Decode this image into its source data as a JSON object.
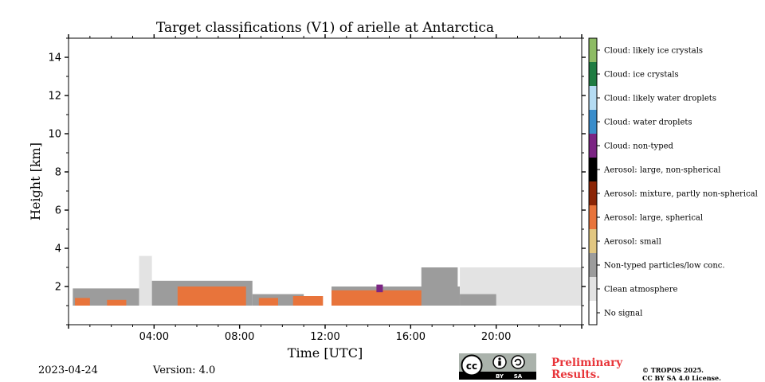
{
  "chart_data": {
    "type": "heatmap",
    "title": "Target classifications (V1) of arielle at Antarctica",
    "xlabel": "Time [UTC]",
    "ylabel": "Height [km]",
    "xlim_hours": [
      0,
      24
    ],
    "ylim_km": [
      0,
      15
    ],
    "x_ticks": [
      {
        "value": 4,
        "label": "04:00"
      },
      {
        "value": 8,
        "label": "08:00"
      },
      {
        "value": 12,
        "label": "12:00"
      },
      {
        "value": 16,
        "label": "16:00"
      },
      {
        "value": 20,
        "label": "20:00"
      }
    ],
    "y_ticks": [
      {
        "value": 2,
        "label": "2"
      },
      {
        "value": 4,
        "label": "4"
      },
      {
        "value": 6,
        "label": "6"
      },
      {
        "value": 8,
        "label": "8"
      },
      {
        "value": 10,
        "label": "10"
      },
      {
        "value": 12,
        "label": "12"
      },
      {
        "value": 14,
        "label": "14"
      }
    ],
    "classes": [
      {
        "label": "No signal",
        "color": "#ffffff"
      },
      {
        "label": "Clean atmosphere",
        "color": "#e3e3e3"
      },
      {
        "label": "Non-typed particles/low conc.",
        "color": "#9c9c9c"
      },
      {
        "label": "Aerosol: small",
        "color": "#e2c781"
      },
      {
        "label": "Aerosol: large, spherical",
        "color": "#e8743b"
      },
      {
        "label": "Aerosol: mixture, partly non-spherical",
        "color": "#8b2506"
      },
      {
        "label": "Aerosol: large, non-spherical",
        "color": "#000000"
      },
      {
        "label": "Cloud: non-typed",
        "color": "#7b2483"
      },
      {
        "label": "Cloud: water droplets",
        "color": "#3a8dcb"
      },
      {
        "label": "Cloud: likely water droplets",
        "color": "#b5dcf3"
      },
      {
        "label": "Cloud: ice crystals",
        "color": "#1f7c42"
      },
      {
        "label": "Cloud: likely ice crystals",
        "color": "#8dbb64"
      }
    ],
    "regions": [
      {
        "class": "Non-typed particles/low conc.",
        "t0": 0.2,
        "t1": 3.3,
        "h0": 1.0,
        "h1": 1.9
      },
      {
        "class": "Aerosol: large, spherical",
        "t0": 0.3,
        "t1": 1.0,
        "h0": 1.0,
        "h1": 1.4
      },
      {
        "class": "Aerosol: large, spherical",
        "t0": 1.8,
        "t1": 2.7,
        "h0": 1.0,
        "h1": 1.3
      },
      {
        "class": "Clean atmosphere",
        "t0": 3.3,
        "t1": 3.9,
        "h0": 1.0,
        "h1": 3.6
      },
      {
        "class": "Non-typed particles/low conc.",
        "t0": 3.9,
        "t1": 8.6,
        "h0": 1.0,
        "h1": 2.3
      },
      {
        "class": "Aerosol: large, spherical",
        "t0": 5.1,
        "t1": 8.3,
        "h0": 1.0,
        "h1": 2.0
      },
      {
        "class": "Non-typed particles/low conc.",
        "t0": 8.6,
        "t1": 11.0,
        "h0": 1.0,
        "h1": 1.6
      },
      {
        "class": "Aerosol: large, spherical",
        "t0": 8.9,
        "t1": 9.8,
        "h0": 1.0,
        "h1": 1.4
      },
      {
        "class": "Aerosol: large, spherical",
        "t0": 10.5,
        "t1": 11.9,
        "h0": 1.0,
        "h1": 1.5
      },
      {
        "class": "Non-typed particles/low conc.",
        "t0": 12.3,
        "t1": 18.3,
        "h0": 1.0,
        "h1": 2.0
      },
      {
        "class": "Aerosol: large, spherical",
        "t0": 12.3,
        "t1": 17.4,
        "h0": 1.0,
        "h1": 1.8
      },
      {
        "class": "Non-typed particles/low conc.",
        "t0": 16.5,
        "t1": 18.2,
        "h0": 1.0,
        "h1": 3.0
      },
      {
        "class": "Cloud: non-typed",
        "t0": 14.4,
        "t1": 14.7,
        "h0": 1.7,
        "h1": 2.1
      },
      {
        "class": "Clean atmosphere",
        "t0": 18.3,
        "t1": 24.0,
        "h0": 1.0,
        "h1": 3.0
      },
      {
        "class": "Non-typed particles/low conc.",
        "t0": 18.3,
        "t1": 20.0,
        "h0": 1.0,
        "h1": 1.6
      }
    ]
  },
  "footer": {
    "date": "2023-04-24",
    "version": "Version: 4.0",
    "license_badge": "cc BY SA",
    "preliminary": "Preliminary Results.",
    "copyright_line1": "© TROPOS 2025.",
    "copyright_line2": "CC BY SA 4.0 License."
  }
}
